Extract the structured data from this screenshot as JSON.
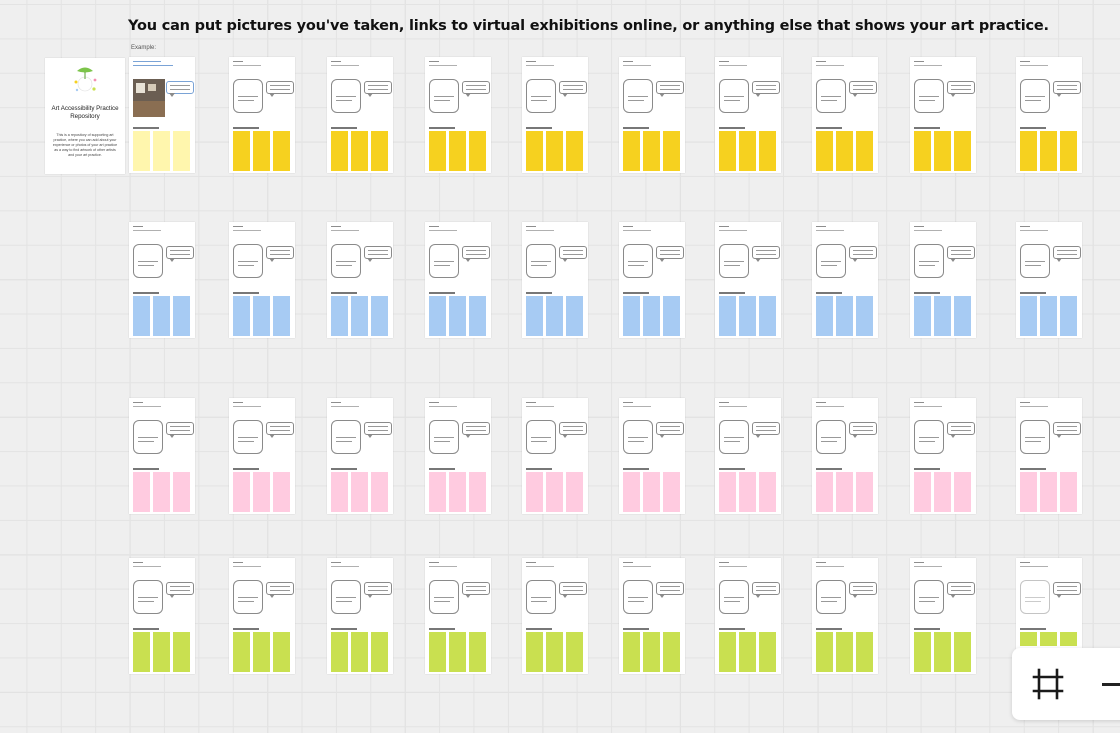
{
  "instruction": "You can put pictures you've taken, links to virtual exhibitions online, or anything else that shows your art practice.",
  "example_label": "Example:",
  "cover": {
    "title": "Art Accessibility Practice Repository",
    "description": "This is a repository of supporting art practice, where you can add about your experience or photos of your art practice as a way to find artwork of other artists and your art practice."
  },
  "colors": {
    "yellow": "#f6d11f",
    "yellow_example": "#fff6ad",
    "blue": "#a7cbf3",
    "pink": "#ffcbe0",
    "green": "#c9e050"
  },
  "rows": [
    {
      "color": "yellow",
      "cards": 10
    },
    {
      "color": "blue",
      "cards": 10
    },
    {
      "color": "pink",
      "cards": 10
    },
    {
      "color": "green",
      "cards": 10
    }
  ],
  "toolbar": {
    "icons": [
      "frame-icon",
      "minus-icon"
    ]
  }
}
